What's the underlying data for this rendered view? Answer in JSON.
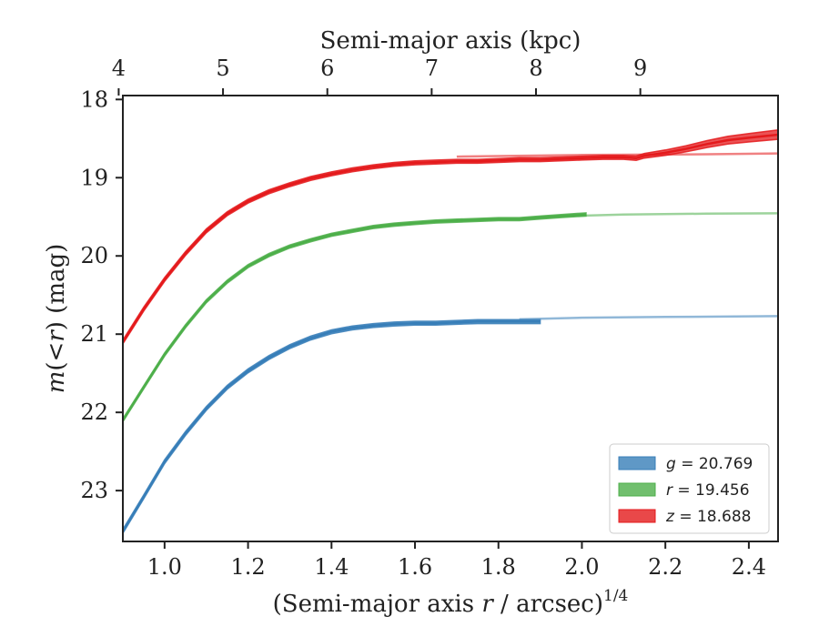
{
  "chart_data": {
    "type": "line",
    "xlabel": "(Semi-major axis r / arcsec)^1/4",
    "xlabel_parts": {
      "prefix": "(Semi-major axis ",
      "var": "r",
      "suffix": " / arcsec)",
      "exponent": "1/4"
    },
    "ylabel": "m(< r) (mag)",
    "ylabel_parts": {
      "m": "m",
      "open": "(<",
      "r": "r",
      "close": ") (mag)"
    },
    "top_xlabel": "Semi-major axis (kpc)",
    "xlim": [
      0.9,
      2.47
    ],
    "ylim": [
      23.65,
      17.95
    ],
    "y_inverted": true,
    "x_ticks": [
      1.0,
      1.2,
      1.4,
      1.6,
      1.8,
      2.0,
      2.2,
      2.4
    ],
    "x_tick_labels": [
      "1.0",
      "1.2",
      "1.4",
      "1.6",
      "1.8",
      "2.0",
      "2.2",
      "2.4"
    ],
    "y_ticks": [
      18,
      19,
      20,
      21,
      22,
      23
    ],
    "y_tick_labels": [
      "18",
      "19",
      "20",
      "21",
      "22",
      "23"
    ],
    "top_x_ticks": [
      {
        "label": "4",
        "x": 0.89
      },
      {
        "label": "5",
        "x": 1.14
      },
      {
        "label": "6",
        "x": 1.39
      },
      {
        "label": "7",
        "x": 1.64
      },
      {
        "label": "8",
        "x": 1.89
      },
      {
        "label": "9",
        "x": 2.14
      }
    ],
    "legend_position": "lower-right",
    "series": [
      {
        "name": "g = 20.769",
        "band": "g",
        "value": "20.769",
        "color": "#377eb8",
        "band_width_mag": 0.05,
        "x": [
          0.9,
          0.95,
          1.0,
          1.05,
          1.1,
          1.15,
          1.2,
          1.25,
          1.3,
          1.35,
          1.4,
          1.45,
          1.5,
          1.55,
          1.6,
          1.65,
          1.7,
          1.75,
          1.8,
          1.85,
          1.9
        ],
        "y": [
          23.52,
          23.08,
          22.63,
          22.27,
          21.95,
          21.68,
          21.47,
          21.3,
          21.16,
          21.05,
          20.97,
          20.92,
          20.89,
          20.87,
          20.86,
          20.86,
          20.85,
          20.84,
          20.84,
          20.84,
          20.84
        ],
        "model_x": [
          1.85,
          2.0,
          2.2,
          2.47
        ],
        "model_y": [
          20.81,
          20.79,
          20.78,
          20.77
        ]
      },
      {
        "name": "r = 19.456",
        "band": "r",
        "value": "19.456",
        "color": "#4daf4a",
        "band_width_mag": 0.04,
        "x": [
          0.9,
          0.95,
          1.0,
          1.05,
          1.1,
          1.15,
          1.2,
          1.25,
          1.3,
          1.35,
          1.4,
          1.45,
          1.5,
          1.55,
          1.6,
          1.65,
          1.7,
          1.75,
          1.8,
          1.85,
          1.9,
          1.95,
          2.01
        ],
        "y": [
          22.1,
          21.68,
          21.26,
          20.9,
          20.58,
          20.33,
          20.13,
          19.99,
          19.88,
          19.8,
          19.73,
          19.68,
          19.63,
          19.6,
          19.58,
          19.56,
          19.55,
          19.54,
          19.53,
          19.53,
          19.51,
          19.49,
          19.47
        ],
        "model_x": [
          1.9,
          2.1,
          2.3,
          2.47
        ],
        "model_y": [
          19.5,
          19.47,
          19.46,
          19.455
        ]
      },
      {
        "name": "z = 18.688",
        "band": "z",
        "value": "18.688",
        "color": "#e41a1c",
        "band_width_mag": 0.05,
        "x": [
          0.9,
          0.95,
          1.0,
          1.05,
          1.1,
          1.15,
          1.2,
          1.25,
          1.3,
          1.35,
          1.4,
          1.45,
          1.5,
          1.55,
          1.6,
          1.65,
          1.7,
          1.75,
          1.8,
          1.85,
          1.9,
          1.95,
          2.0,
          2.05,
          2.1,
          2.13,
          2.15,
          2.2,
          2.25,
          2.3,
          2.35,
          2.4,
          2.47
        ],
        "y": [
          21.1,
          20.68,
          20.3,
          19.97,
          19.68,
          19.46,
          19.3,
          19.18,
          19.09,
          19.01,
          18.95,
          18.9,
          18.86,
          18.83,
          18.81,
          18.8,
          18.79,
          18.79,
          18.78,
          18.77,
          18.77,
          18.76,
          18.75,
          18.74,
          18.74,
          18.75,
          18.72,
          18.68,
          18.63,
          18.57,
          18.52,
          18.49,
          18.45
        ],
        "band_width_extra": {
          "from_x": 2.1,
          "to_width": 0.12
        },
        "model_x": [
          1.7,
          2.0,
          2.3,
          2.47
        ],
        "model_y": [
          18.73,
          18.71,
          18.7,
          18.69
        ]
      }
    ]
  }
}
